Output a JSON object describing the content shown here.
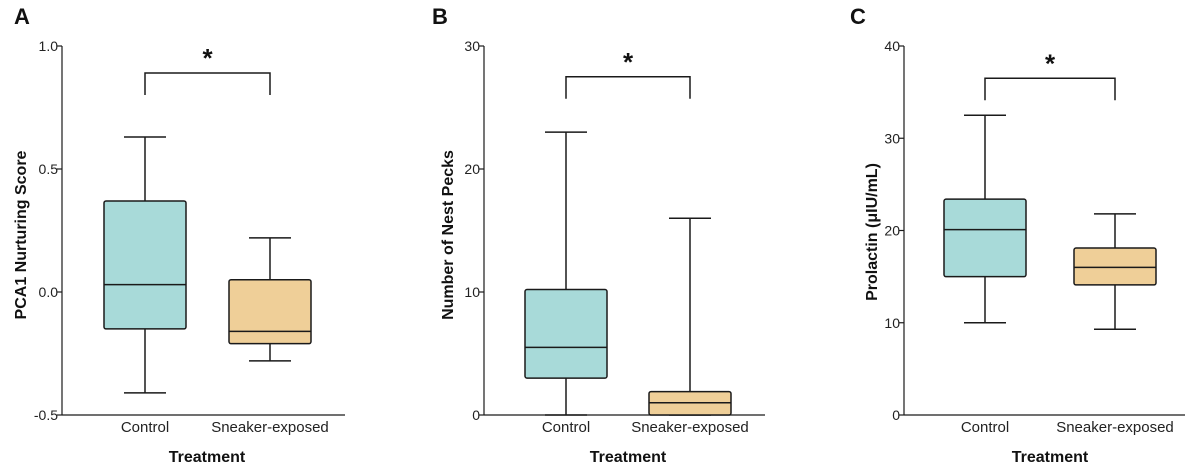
{
  "colors": {
    "control": "#a8dad9",
    "sneaker": "#efcf98",
    "stroke": "#1a1a1a"
  },
  "chart_data": [
    {
      "type": "boxplot",
      "panel": "A",
      "xlabel": "Treatment",
      "ylabel": "PCA1 Nurturing Score",
      "ylim": [
        -0.5,
        1.0
      ],
      "yticks": [
        -0.5,
        0.0,
        0.5,
        1.0
      ],
      "ytick_labels": [
        "-0.5",
        "0.0",
        "0.5",
        "1.0"
      ],
      "categories": [
        "Control",
        "Sneaker-exposed"
      ],
      "boxes": [
        {
          "whislo": -0.41,
          "q1": -0.15,
          "med": 0.03,
          "q3": 0.37,
          "whishi": 0.63
        },
        {
          "whislo": -0.28,
          "q1": -0.21,
          "med": -0.16,
          "q3": 0.05,
          "whishi": 0.22
        }
      ],
      "significance": {
        "label": "*",
        "y": 0.89
      }
    },
    {
      "type": "boxplot",
      "panel": "B",
      "xlabel": "Treatment",
      "ylabel": "Number of Nest Pecks",
      "ylim": [
        0,
        30
      ],
      "yticks": [
        0,
        10,
        20,
        30
      ],
      "ytick_labels": [
        "0",
        "10",
        "20",
        "30"
      ],
      "categories": [
        "Control",
        "Sneaker-exposed"
      ],
      "boxes": [
        {
          "whislo": 0,
          "q1": 3,
          "med": 5.5,
          "q3": 10.2,
          "whishi": 23
        },
        {
          "whislo": 0,
          "q1": 0,
          "med": 1,
          "q3": 1.9,
          "whishi": 16
        }
      ],
      "significance": {
        "label": "*",
        "y": 27.5
      }
    },
    {
      "type": "boxplot",
      "panel": "C",
      "xlabel": "Treatment",
      "ylabel": "Prolactin (μIU/mL)",
      "ylim": [
        0,
        40
      ],
      "yticks": [
        0,
        10,
        20,
        30,
        40
      ],
      "ytick_labels": [
        "0",
        "10",
        "20",
        "30",
        "40"
      ],
      "categories": [
        "Control",
        "Sneaker-exposed"
      ],
      "boxes": [
        {
          "whislo": 10,
          "q1": 15,
          "med": 20.1,
          "q3": 23.4,
          "whishi": 32.5
        },
        {
          "whislo": 9.3,
          "q1": 14.1,
          "med": 16,
          "q3": 18.1,
          "whishi": 21.8
        }
      ],
      "significance": {
        "label": "*",
        "y": 36.5
      }
    }
  ]
}
